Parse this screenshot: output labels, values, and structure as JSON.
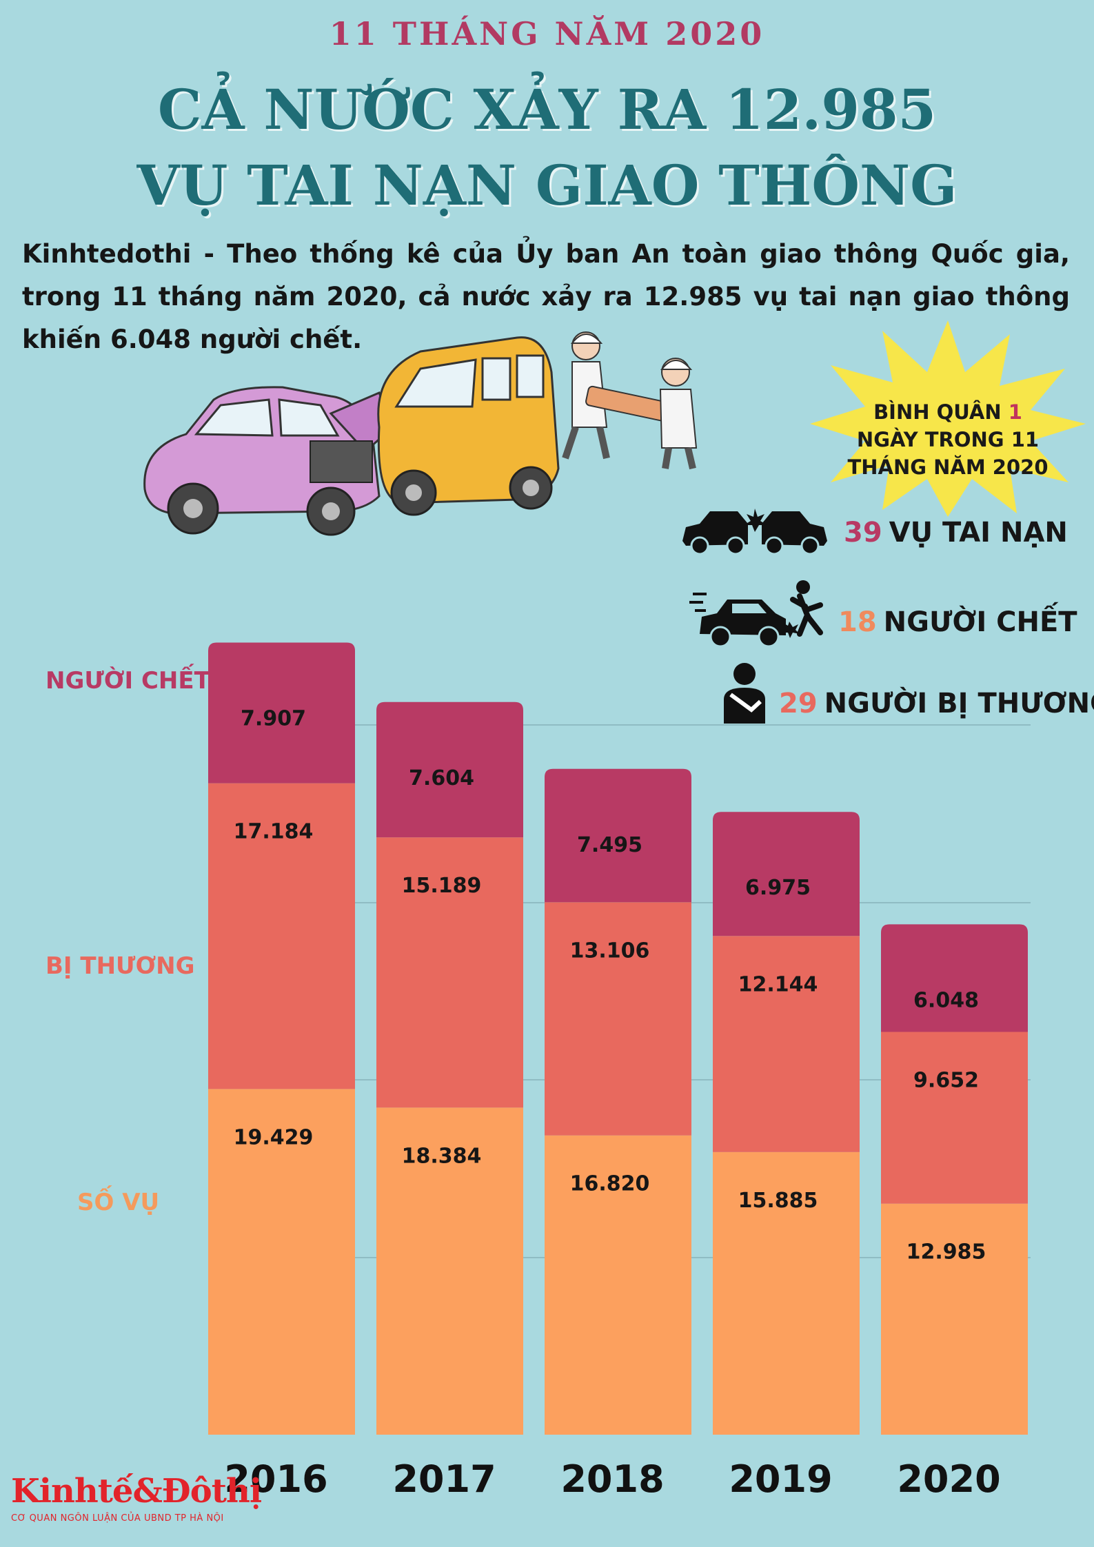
{
  "header": {
    "kicker": "11 THÁNG NĂM 2020",
    "title_line1": "CẢ NƯỚC XẢY RA 12.985",
    "title_line2": "VỤ TAI NẠN GIAO THÔNG",
    "intro": "Kinhtedothi - Theo thống kê của Ủy ban An toàn giao thông Quốc gia, trong 11 tháng năm 2020, cả nước xảy ra 12.985 vụ tai nạn giao thông khiến 6.048 người chết."
  },
  "daily_average": {
    "heading_pre": "BÌNH QUÂN ",
    "heading_num": "1",
    "heading_line2": "NGÀY TRONG 11",
    "heading_line3": "THÁNG NĂM 2020",
    "stats": [
      {
        "value": "39",
        "label": "VỤ TAI NẠN",
        "icon": "car-crash-icon"
      },
      {
        "value": "18",
        "label": "NGƯỜI CHẾT",
        "icon": "car-hit-pedestrian-icon"
      },
      {
        "value": "29",
        "label": "NGƯỜI BỊ THƯƠNG",
        "icon": "injured-person-icon"
      }
    ]
  },
  "side_labels": {
    "nguoi_chet": "NGƯỜI CHẾT",
    "bi_thuong": "BỊ THƯƠNG",
    "so_vu": "SỐ VỤ"
  },
  "logo": {
    "name": "Kinhtế&Đôthị",
    "subtitle": "CƠ QUAN NGÔN LUẬN CỦA UBND TP HÀ NỘI"
  },
  "colors": {
    "background": "#a9d9df",
    "nguoi_chet": "#b83a64",
    "bi_thuong": "#e8695e",
    "so_vu": "#fca05e",
    "title": "#1f6d76"
  },
  "chart_data": {
    "type": "bar",
    "stacked": true,
    "categories": [
      "2016",
      "2017",
      "2018",
      "2019",
      "2020"
    ],
    "series": [
      {
        "name": "SỐ VỤ",
        "values": [
          19429,
          18384,
          16820,
          15885,
          12985
        ],
        "labels": [
          "19.429",
          "18.384",
          "16.820",
          "15.885",
          "12.985"
        ]
      },
      {
        "name": "BỊ THƯƠNG",
        "values": [
          17184,
          15189,
          13106,
          12144,
          9652
        ],
        "labels": [
          "17.184",
          "15.189",
          "13.106",
          "12.144",
          "9.652"
        ]
      },
      {
        "name": "NGƯỜI CHẾT",
        "values": [
          7907,
          7604,
          7495,
          6975,
          6048
        ],
        "labels": [
          "7.907",
          "7.604",
          "7.495",
          "6.975",
          "6.048"
        ]
      }
    ],
    "grid": true
  }
}
